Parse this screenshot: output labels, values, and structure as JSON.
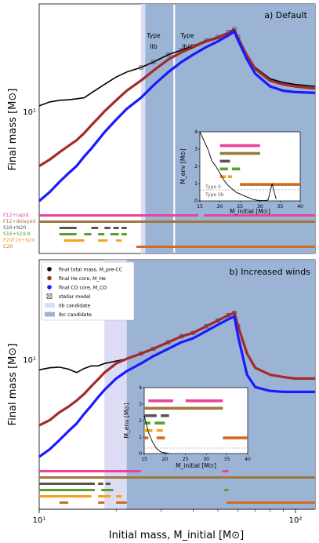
{
  "figure": {
    "xlabel": "Initial mass, M_initial [M⊙]",
    "ylabel_top": "Final mass [M⊙]",
    "ylabel_bottom": "Final mass [M⊙]",
    "x_ticks": [
      "10¹",
      "10²"
    ],
    "y_tick_top": "10¹",
    "y_tick_bottom": "10¹"
  },
  "colors": {
    "total": "#000000",
    "he": "#a52a2a",
    "co": "#1a1aff",
    "stellar_model_edge": "#444444",
    "iib": "#dcdcf5",
    "ibc": "#9bb4d6",
    "r_f12_rapid": "#e8449a",
    "r_f12_delayed": "#a0763c",
    "r_s16_n20": "#555555",
    "r_s16_s198": "#5aa02c",
    "r_p20": "#f5a21a",
    "r_c20": "#d2691e"
  },
  "chart_data": [
    {
      "type": "line",
      "panel_label": "a) Default",
      "x_scale": "log",
      "xlim": [
        10,
        120
      ],
      "ylim": [
        1.5,
        60
      ],
      "y_scale": "log",
      "iib_regions": [
        [
          25,
          26
        ]
      ],
      "ibc_regions": [
        [
          26,
          33.5
        ],
        [
          34,
          120
        ]
      ],
      "type_labels": [
        {
          "line1": "Type",
          "line2": "IIb",
          "x": 28.5
        },
        {
          "line1": "Type",
          "line2": "Ib/c",
          "x": 36
        }
      ],
      "series": [
        {
          "name": "final total mass, M_pre-CC",
          "key": "total",
          "x": [
            10,
            11,
            12,
            13,
            14,
            15,
            16,
            17,
            18,
            20,
            22,
            25,
            28,
            32,
            36,
            40,
            45,
            50,
            55,
            58,
            60,
            65,
            70,
            80,
            90,
            100,
            120
          ],
          "y": [
            9.5,
            10.2,
            10.5,
            10.6,
            10.8,
            11,
            12,
            13,
            14,
            16,
            17.5,
            19,
            21,
            24,
            26,
            28,
            31,
            33,
            36,
            38,
            33,
            24,
            19,
            15.5,
            14.5,
            14,
            13.5
          ]
        },
        {
          "name": "final He core, M_He",
          "key": "he",
          "x": [
            10,
            11,
            12,
            13,
            14,
            15,
            16,
            17,
            18,
            20,
            22,
            25,
            28,
            32,
            36,
            40,
            45,
            50,
            55,
            58,
            60,
            65,
            70,
            80,
            90,
            100,
            120
          ],
          "y": [
            3.2,
            3.6,
            4.1,
            4.6,
            5.1,
            5.8,
            6.7,
            7.6,
            8.6,
            10.5,
            12.5,
            15,
            18,
            22,
            25,
            27.5,
            30.5,
            32.5,
            35.5,
            37,
            32,
            23.5,
            18.5,
            15,
            14,
            13.5,
            13
          ]
        },
        {
          "name": "final CO core, M_CO",
          "key": "co",
          "x": [
            10,
            11,
            12,
            13,
            14,
            15,
            16,
            17,
            18,
            20,
            22,
            25,
            28,
            32,
            36,
            40,
            45,
            50,
            55,
            58,
            60,
            65,
            70,
            80,
            90,
            100,
            120
          ],
          "y": [
            1.7,
            2.0,
            2.4,
            2.8,
            3.2,
            3.8,
            4.4,
            5.1,
            5.9,
            7.4,
            9.0,
            11.0,
            13.8,
            17.5,
            21,
            24,
            27.5,
            30.5,
            34,
            36.5,
            31,
            22,
            17,
            13.5,
            12.5,
            12.2,
            12
          ]
        }
      ],
      "remnant_rows": [
        {
          "label": "F12+rapid",
          "color_key": "r_f12_rapid",
          "segments": [
            [
              10,
              42
            ],
            [
              44,
              120
            ]
          ]
        },
        {
          "label": "F12+delayed",
          "color_key": "r_f12_delayed",
          "segments": [
            [
              10,
              120
            ]
          ]
        },
        {
          "label": "S16+N20",
          "color_key": "r_s16_n20",
          "segments": [
            [
              12,
              14
            ],
            [
              16,
              17
            ],
            [
              18,
              19
            ],
            [
              19.5,
              20.5
            ],
            [
              21,
              22
            ]
          ]
        },
        {
          "label": "S16+S19.8",
          "color_key": "r_s16_s198",
          "segments": [
            [
              12,
              14
            ],
            [
              15,
              16
            ],
            [
              17,
              18
            ],
            [
              19,
              20.5
            ],
            [
              21,
              22
            ]
          ]
        },
        {
          "label": "P20F16+N20",
          "color_key": "r_p20",
          "segments": [
            [
              12.5,
              15
            ],
            [
              17,
              18.5
            ],
            [
              20,
              21
            ]
          ]
        },
        {
          "label": "C20",
          "color_key": "r_c20",
          "segments": [
            [
              24,
              120
            ]
          ]
        }
      ],
      "inset": {
        "xlabel": "M_initial [M⊙]",
        "ylabel": "M_env [M⊙]",
        "xlim": [
          15,
          40
        ],
        "ylim": [
          0,
          4
        ],
        "x_ticks": [
          "15",
          "20",
          "25",
          "30",
          "35",
          "40"
        ],
        "y_ticks": [
          "0",
          "1",
          "2",
          "3",
          "4"
        ],
        "type_ii_label": "Type II",
        "type_iib_label": "Type IIb",
        "curve": {
          "x": [
            15,
            16,
            17,
            18,
            19,
            20,
            21,
            22,
            23,
            24,
            25,
            26,
            27,
            28,
            29,
            30,
            31,
            32,
            33,
            34
          ],
          "y": [
            4,
            3.5,
            3.0,
            2.3,
            2.0,
            1.6,
            1.2,
            0.9,
            0.7,
            0.5,
            0.4,
            0.3,
            0.2,
            0.1,
            0.05,
            0.02,
            0.02,
            0.05,
            1.0,
            0.1
          ]
        },
        "bars": [
          {
            "color_key": "r_f12_rapid",
            "segments": [
              [
                20,
                30
              ]
            ]
          },
          {
            "color_key": "r_f12_delayed",
            "segments": [
              [
                20,
                30
              ]
            ]
          },
          {
            "color_key": "r_s16_n20",
            "segments": [
              [
                20,
                22.5
              ]
            ]
          },
          {
            "color_key": "r_s16_s198",
            "segments": [
              [
                20,
                22
              ],
              [
                23,
                25
              ]
            ]
          },
          {
            "color_key": "r_p20",
            "segments": [
              [
                20,
                21.5
              ],
              [
                22,
                23
              ]
            ]
          },
          {
            "color_key": "r_c20",
            "segments": [
              [
                25,
                40
              ]
            ]
          }
        ]
      }
    },
    {
      "type": "line",
      "panel_label": "b) Increased winds",
      "x_scale": "log",
      "xlim": [
        10,
        120
      ],
      "ylim": [
        1.5,
        60
      ],
      "y_scale": "log",
      "iib_regions": [
        [
          18,
          22
        ]
      ],
      "ibc_regions": [
        [
          22,
          120
        ]
      ],
      "legend": [
        {
          "label": "final total mass, M_pre-CC",
          "marker": "dot",
          "color_key": "total"
        },
        {
          "label": "final He core, M_He",
          "marker": "dot",
          "color_key": "he"
        },
        {
          "label": "final CO core, M_CO",
          "marker": "dot",
          "color_key": "co"
        },
        {
          "label": "stellar model",
          "marker": "cross-square",
          "color_key": "stellar_model_edge"
        },
        {
          "label": "IIb candidate",
          "marker": "band",
          "color_key": "iib"
        },
        {
          "label": "Ibc candidate",
          "marker": "band",
          "color_key": "ibc"
        }
      ],
      "series": [
        {
          "name": "final total mass, M_pre-CC",
          "key": "total",
          "x": [
            10,
            11,
            12,
            13,
            14,
            15,
            16,
            17,
            18,
            20,
            22,
            25,
            28,
            32,
            36,
            40,
            45,
            50,
            55,
            58,
            60,
            65,
            70,
            80,
            90,
            100,
            120
          ],
          "y": [
            8.2,
            8.5,
            8.6,
            8.3,
            7.8,
            8.4,
            8.8,
            8.8,
            9.2,
            9.6,
            10,
            11,
            12,
            13.5,
            15,
            16,
            18,
            20,
            22,
            23,
            18,
            11,
            8.5,
            7.5,
            7.2,
            7.0,
            7.0
          ]
        },
        {
          "name": "final He core, M_He",
          "key": "he",
          "x": [
            10,
            11,
            12,
            13,
            14,
            15,
            16,
            17,
            18,
            20,
            22,
            25,
            28,
            32,
            36,
            40,
            45,
            50,
            55,
            58,
            60,
            65,
            70,
            80,
            90,
            100,
            120
          ],
          "y": [
            3.0,
            3.3,
            3.8,
            4.2,
            4.7,
            5.3,
            6.1,
            6.9,
            7.8,
            9.2,
            10,
            11,
            12,
            13.5,
            15,
            16,
            18,
            20,
            22,
            23,
            18,
            11,
            8.5,
            7.5,
            7.2,
            7.0,
            7.0
          ]
        },
        {
          "name": "final CO core, M_CO",
          "key": "co",
          "x": [
            10,
            11,
            12,
            13,
            14,
            15,
            16,
            17,
            18,
            20,
            22,
            25,
            28,
            32,
            36,
            40,
            45,
            50,
            55,
            58,
            60,
            65,
            70,
            80,
            90,
            100,
            120
          ],
          "y": [
            1.7,
            1.95,
            2.3,
            2.7,
            3.1,
            3.7,
            4.3,
            5.0,
            5.7,
            7.0,
            8.0,
            9.2,
            10.5,
            12,
            13.5,
            14.5,
            16.5,
            18.5,
            20.5,
            21.5,
            15,
            7.5,
            6.0,
            5.6,
            5.5,
            5.5,
            5.5
          ]
        }
      ],
      "remnant_rows": [
        {
          "label": "",
          "color_key": "r_f12_rapid",
          "segments": [
            [
              10,
              25
            ],
            [
              52,
              55
            ]
          ]
        },
        {
          "label": "",
          "color_key": "r_f12_delayed",
          "segments": [
            [
              10,
              120
            ]
          ]
        },
        {
          "label": "",
          "color_key": "r_s16_n20",
          "segments": [
            [
              10,
              16.5
            ],
            [
              17,
              17.8
            ],
            [
              18.2,
              19
            ]
          ]
        },
        {
          "label": "",
          "color_key": "r_s16_s198",
          "segments": [
            [
              10,
              16.5
            ],
            [
              17.5,
              19.5
            ],
            [
              53,
              55
            ]
          ]
        },
        {
          "label": "",
          "color_key": "r_p20",
          "segments": [
            [
              10,
              16
            ],
            [
              17,
              19
            ],
            [
              20,
              21
            ]
          ]
        },
        {
          "label": "",
          "color_key": "r_c20",
          "segments": [
            [
              12,
              13
            ],
            [
              17,
              18
            ],
            [
              20,
              22
            ],
            [
              54,
              120
            ]
          ]
        }
      ],
      "inset": {
        "xlabel": "M_initial [M⊙]",
        "ylabel": "M_env [M⊙]",
        "xlim": [
          15,
          40
        ],
        "ylim": [
          0,
          4
        ],
        "x_ticks": [
          "15",
          "20",
          "25",
          "30",
          "35",
          "40"
        ],
        "y_ticks": [
          "0",
          "1",
          "2",
          "3",
          "4"
        ],
        "curve": {
          "x": [
            15,
            15.5,
            16,
            16.5,
            17,
            17.5,
            18,
            19,
            20,
            21
          ],
          "y": [
            2.3,
            1.8,
            1.3,
            1.0,
            0.7,
            0.5,
            0.3,
            0.1,
            0.05,
            0.0
          ]
        },
        "bars": [
          {
            "color_key": "r_f12_rapid",
            "segments": [
              [
                16,
                22
              ],
              [
                25,
                34
              ]
            ]
          },
          {
            "color_key": "r_f12_delayed",
            "segments": [
              [
                15,
                34
              ]
            ]
          },
          {
            "color_key": "r_s16_n20",
            "segments": [
              [
                15,
                18
              ],
              [
                19,
                21
              ]
            ]
          },
          {
            "color_key": "r_s16_s198",
            "segments": [
              [
                15,
                16.5
              ],
              [
                17.5,
                20
              ]
            ]
          },
          {
            "color_key": "r_p20",
            "segments": [
              [
                15,
                17
              ],
              [
                18,
                19.5
              ]
            ]
          },
          {
            "color_key": "r_c20",
            "segments": [
              [
                15,
                16
              ],
              [
                18,
                20
              ],
              [
                34,
                40
              ]
            ]
          }
        ]
      }
    }
  ]
}
